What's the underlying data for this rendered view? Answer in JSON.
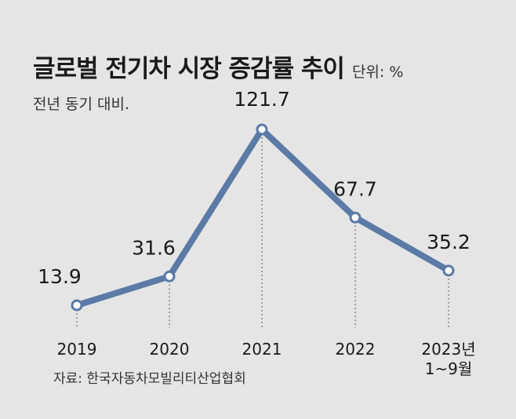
{
  "header": {
    "title": "글로벌 전기차 시장 증감률 추이",
    "unit": "단위: %",
    "subtitle": "전년 동기 대비."
  },
  "footer": {
    "source": "자료: 한국자동차모빌리티산업협회"
  },
  "chart_data": {
    "type": "line",
    "categories": [
      [
        "2019"
      ],
      [
        "2020"
      ],
      [
        "2021"
      ],
      [
        "2022"
      ],
      [
        "2023년",
        "1~9월"
      ]
    ],
    "values": [
      13.9,
      31.6,
      121.7,
      67.7,
      35.2
    ],
    "value_labels": [
      "13.9",
      "31.6",
      "121.7",
      "67.7",
      "35.2"
    ],
    "title": "글로벌 전기차 시장 증감률 추이",
    "xlabel": "",
    "ylabel": "",
    "ylim": [
      0,
      130
    ],
    "grid": false,
    "legend": "none",
    "line_color": "#5b7aa6",
    "marker_fill": "#ffffff"
  }
}
